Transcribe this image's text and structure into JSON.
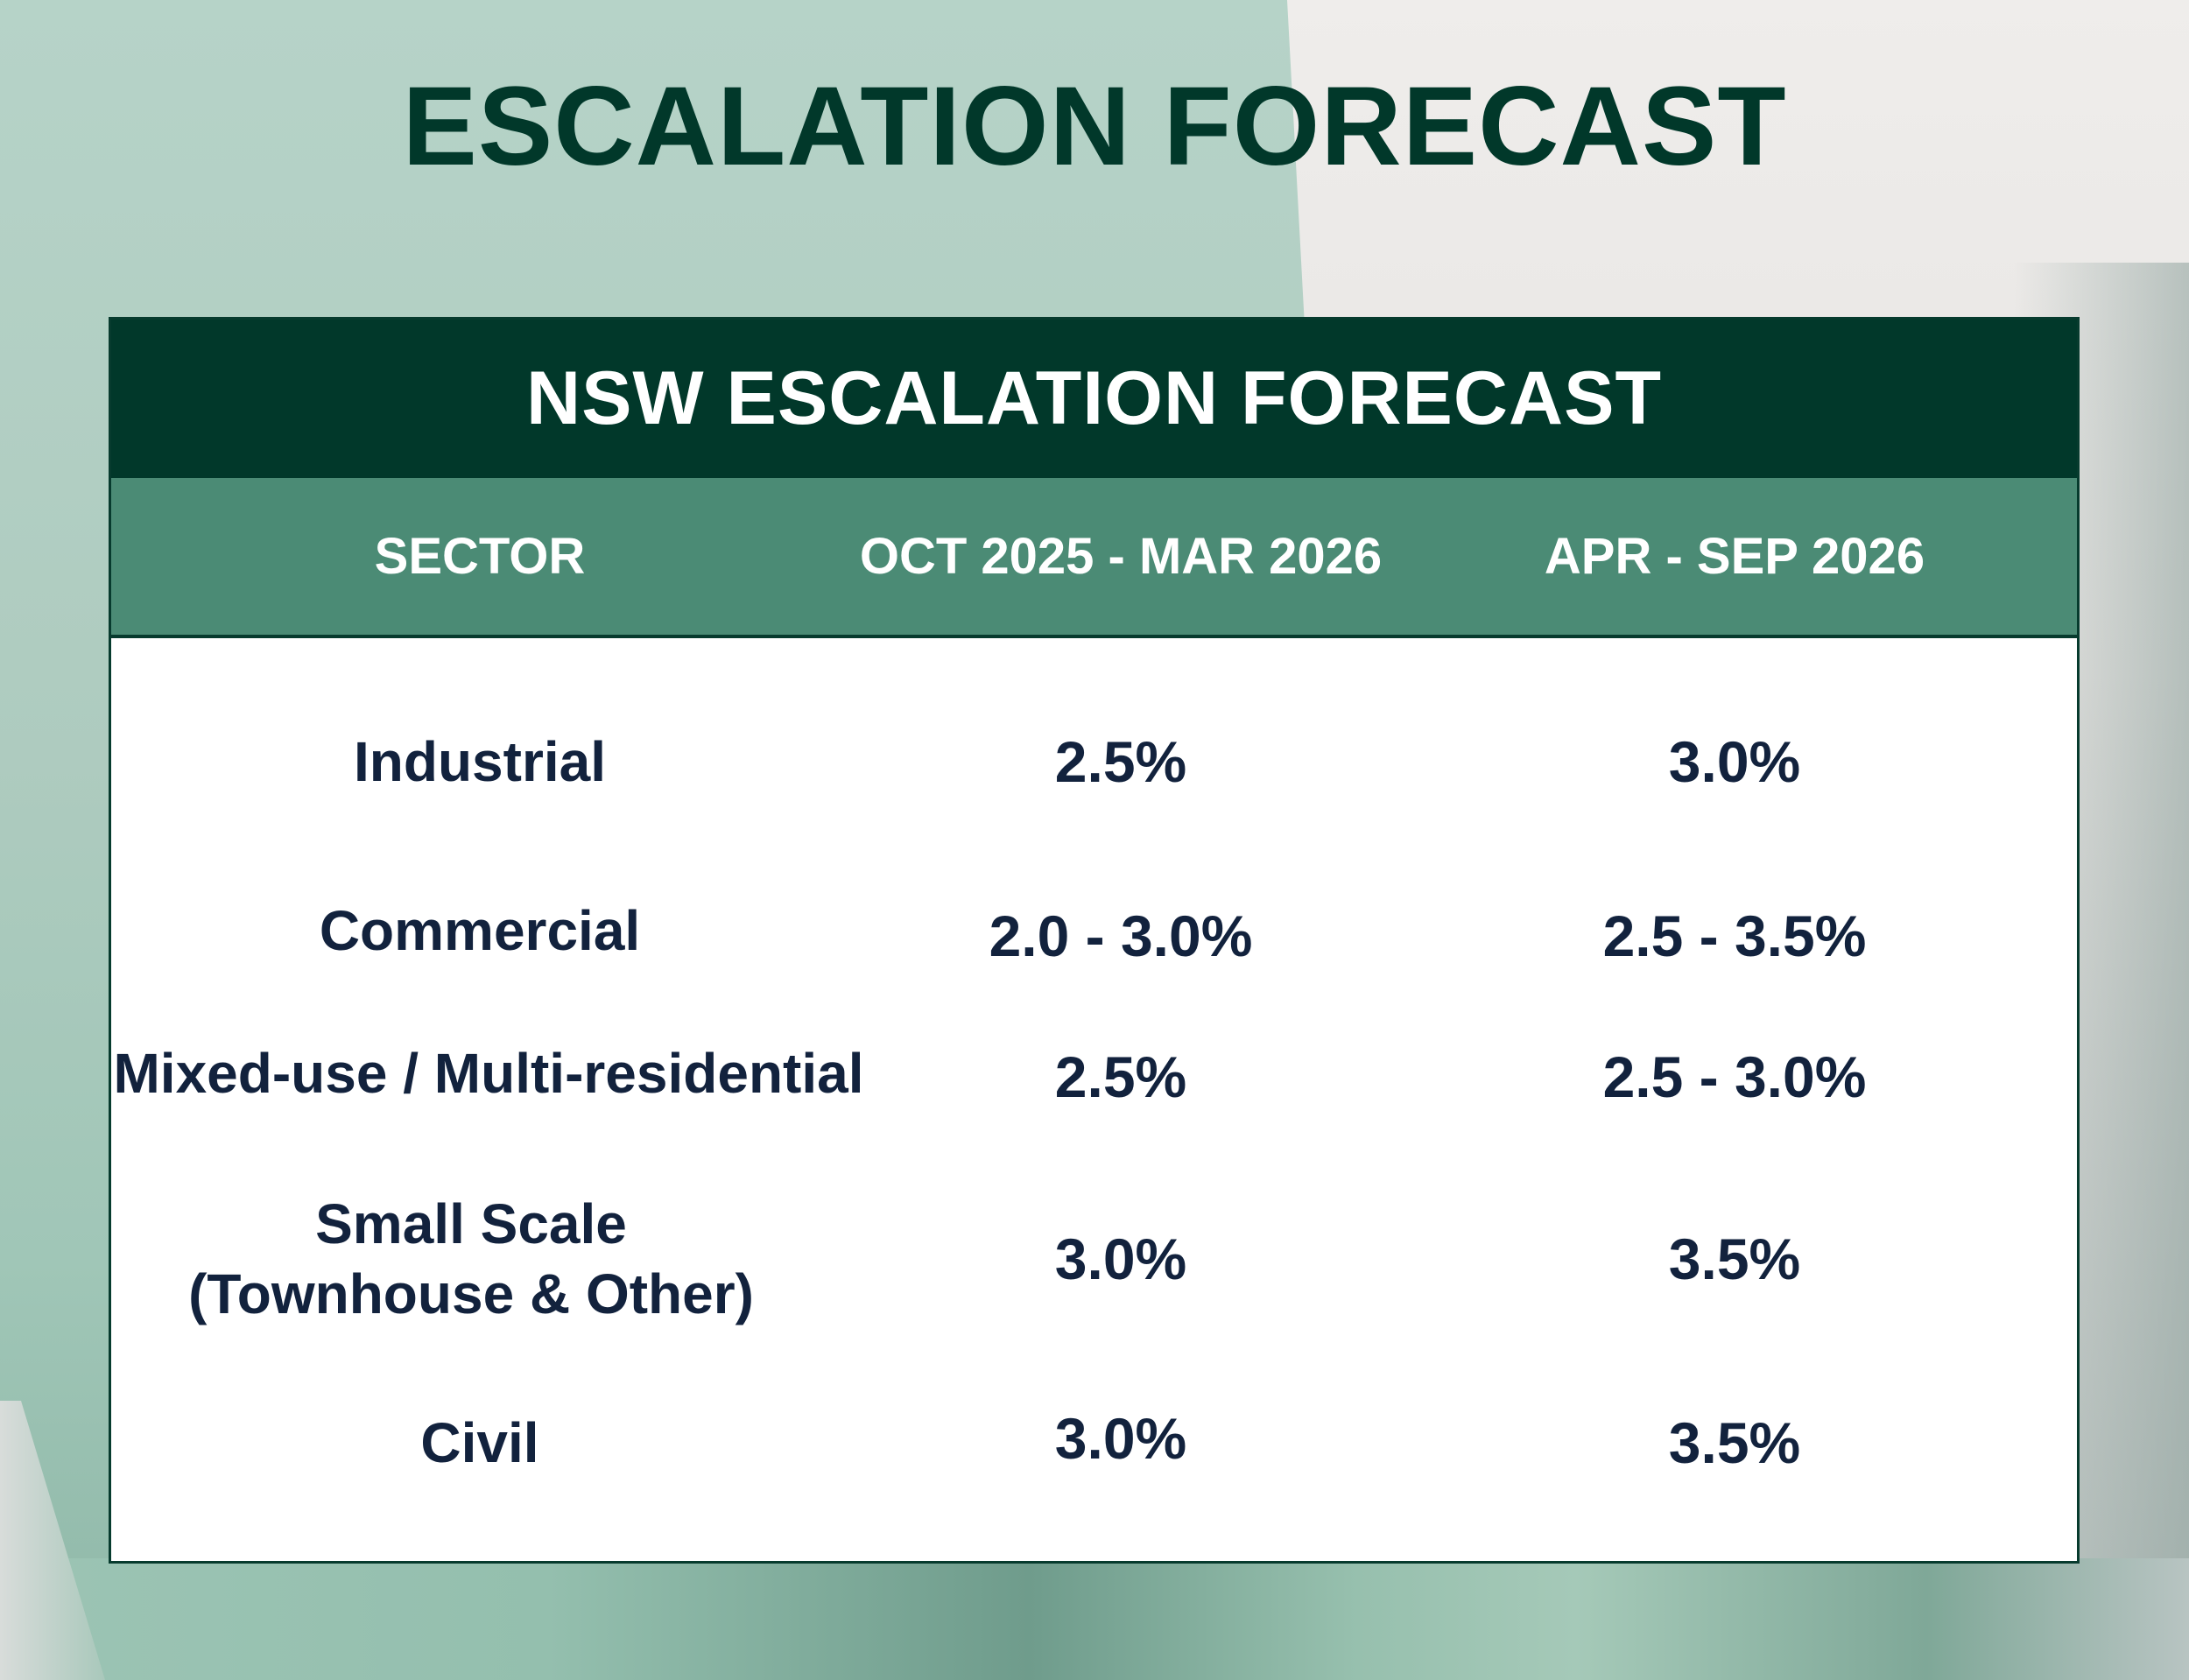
{
  "page": {
    "title": "ESCALATION FORECAST"
  },
  "table": {
    "title": "NSW ESCALATION FORECAST",
    "columns": [
      "SECTOR",
      "OCT 2025 - MAR 2026",
      "APR - SEP 2026"
    ],
    "rows": [
      {
        "sector": "Industrial",
        "sector_line2": "",
        "oct2025_mar2026": "2.5%",
        "apr_sep2026": "3.0%"
      },
      {
        "sector": "Commercial",
        "sector_line2": "",
        "oct2025_mar2026": "2.0 - 3.0%",
        "apr_sep2026": "2.5 - 3.5%"
      },
      {
        "sector": "Mixed-use / Multi-residential",
        "sector_line2": "",
        "oct2025_mar2026": "2.5%",
        "apr_sep2026": "2.5 - 3.0%"
      },
      {
        "sector": "Small Scale",
        "sector_line2": "(Townhouse & Other)",
        "oct2025_mar2026": "3.0%",
        "apr_sep2026": "3.5%"
      },
      {
        "sector": "Civil",
        "sector_line2": "",
        "oct2025_mar2026": "3.0%",
        "apr_sep2026": "3.5%"
      }
    ]
  },
  "colors": {
    "title_text": "#01382a",
    "table_title_bg": "#01382a",
    "column_header_bg": "#4b8b75",
    "body_text": "#12223d",
    "table_bg": "#ffffff"
  }
}
